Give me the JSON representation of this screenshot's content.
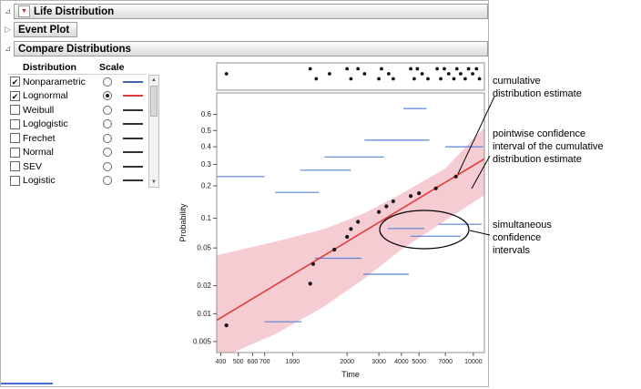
{
  "report": {
    "title": "Life Distribution",
    "event_plot": "Event Plot",
    "compare": "Compare Distributions"
  },
  "compare": {
    "columns": [
      "Distribution",
      "Scale"
    ],
    "rows": [
      {
        "label": "Nonparametric",
        "checked": true,
        "scale_selected": false,
        "color": "#4169b2"
      },
      {
        "label": "Lognormal",
        "checked": true,
        "scale_selected": true,
        "color": "#e03c3c"
      },
      {
        "label": "Weibull",
        "checked": false,
        "scale_selected": false,
        "color": "#333333"
      },
      {
        "label": "Loglogistic",
        "checked": false,
        "scale_selected": false,
        "color": "#333333"
      },
      {
        "label": "Frechet",
        "checked": false,
        "scale_selected": false,
        "color": "#333333"
      },
      {
        "label": "Normal",
        "checked": false,
        "scale_selected": false,
        "color": "#333333"
      },
      {
        "label": "SEV",
        "checked": false,
        "scale_selected": false,
        "color": "#333333"
      },
      {
        "label": "Logistic",
        "checked": false,
        "scale_selected": false,
        "color": "#333333"
      }
    ]
  },
  "chart_data": {
    "type": "scatter",
    "subtype": "probability-plot",
    "x_axis": {
      "label": "Time",
      "scale": "log",
      "range": [
        380,
        11500
      ],
      "ticks": [
        400,
        500,
        600,
        700,
        1000,
        2000,
        3000,
        4000,
        5000,
        7000,
        10000
      ]
    },
    "y_axis": {
      "label": "Probability",
      "scale": "logistic-quantile",
      "range": [
        0.0038,
        0.72
      ],
      "ticks": [
        0.6,
        0.5,
        0.4,
        0.3,
        0.2,
        0.1,
        0.05,
        0.02,
        0.01,
        0.005
      ]
    },
    "nonparametric_points": [
      [
        430,
        0.0075
      ],
      [
        1250,
        0.021
      ],
      [
        1300,
        0.034
      ],
      [
        1700,
        0.048
      ],
      [
        2000,
        0.065
      ],
      [
        2100,
        0.078
      ],
      [
        2300,
        0.092
      ],
      [
        3000,
        0.115
      ],
      [
        3300,
        0.13
      ],
      [
        3600,
        0.145
      ],
      [
        4500,
        0.162
      ],
      [
        5000,
        0.172
      ],
      [
        6200,
        0.19
      ],
      [
        8000,
        0.24
      ]
    ],
    "lognormal_fit_line": {
      "color": "#e03c3c",
      "points": [
        [
          380,
          0.0085
        ],
        [
          11500,
          0.33
        ]
      ]
    },
    "pointwise_band": {
      "color": "#f6ccd3",
      "upper": [
        [
          380,
          0.042
        ],
        [
          800,
          0.058
        ],
        [
          1500,
          0.078
        ],
        [
          2500,
          0.112
        ],
        [
          4000,
          0.17
        ],
        [
          7000,
          0.28
        ],
        [
          11500,
          0.52
        ]
      ],
      "lower": [
        [
          380,
          0.0032
        ],
        [
          800,
          0.006
        ],
        [
          1500,
          0.012
        ],
        [
          2500,
          0.024
        ],
        [
          4000,
          0.048
        ],
        [
          7000,
          0.095
        ],
        [
          11500,
          0.165
        ]
      ]
    },
    "simultaneous_intervals": {
      "color": "#5b84d4",
      "segments": [
        [
          380,
          700,
          0.24
        ],
        [
          800,
          1400,
          0.175
        ],
        [
          1100,
          2100,
          0.27
        ],
        [
          1500,
          3200,
          0.34
        ],
        [
          2500,
          5700,
          0.44
        ],
        [
          4100,
          5500,
          0.635
        ],
        [
          7000,
          11300,
          0.4
        ],
        [
          6400,
          11100,
          0.087
        ],
        [
          3360,
          5350,
          0.079
        ],
        [
          4500,
          8500,
          0.066
        ],
        [
          2460,
          4390,
          0.0265
        ],
        [
          1330,
          2400,
          0.039
        ],
        [
          700,
          1120,
          0.0082
        ]
      ]
    },
    "event_strip": {
      "dots": [
        [
          430,
          1
        ],
        [
          1250,
          0
        ],
        [
          1350,
          2
        ],
        [
          1600,
          1
        ],
        [
          2000,
          0
        ],
        [
          2100,
          2
        ],
        [
          2300,
          0
        ],
        [
          2500,
          1
        ],
        [
          3000,
          2
        ],
        [
          3100,
          0
        ],
        [
          3400,
          1
        ],
        [
          3600,
          2
        ],
        [
          4500,
          0
        ],
        [
          4700,
          2
        ],
        [
          4900,
          0
        ],
        [
          5200,
          1
        ],
        [
          5600,
          2
        ],
        [
          6300,
          0
        ],
        [
          6600,
          2
        ],
        [
          6900,
          0
        ],
        [
          7300,
          1
        ],
        [
          7800,
          2
        ],
        [
          8100,
          0
        ],
        [
          8500,
          1
        ],
        [
          9000,
          2
        ],
        [
          9400,
          0
        ],
        [
          9900,
          1
        ],
        [
          10400,
          0
        ],
        [
          10800,
          2
        ]
      ]
    }
  },
  "annotations": {
    "cumulative_estimate": "cumulative\ndistribution estimate",
    "pointwise_ci": "pointwise confidence\ninterval of the cumulative\ndistribution estimate",
    "simultaneous_ci": "simultaneous\nconfidence\nintervals"
  }
}
